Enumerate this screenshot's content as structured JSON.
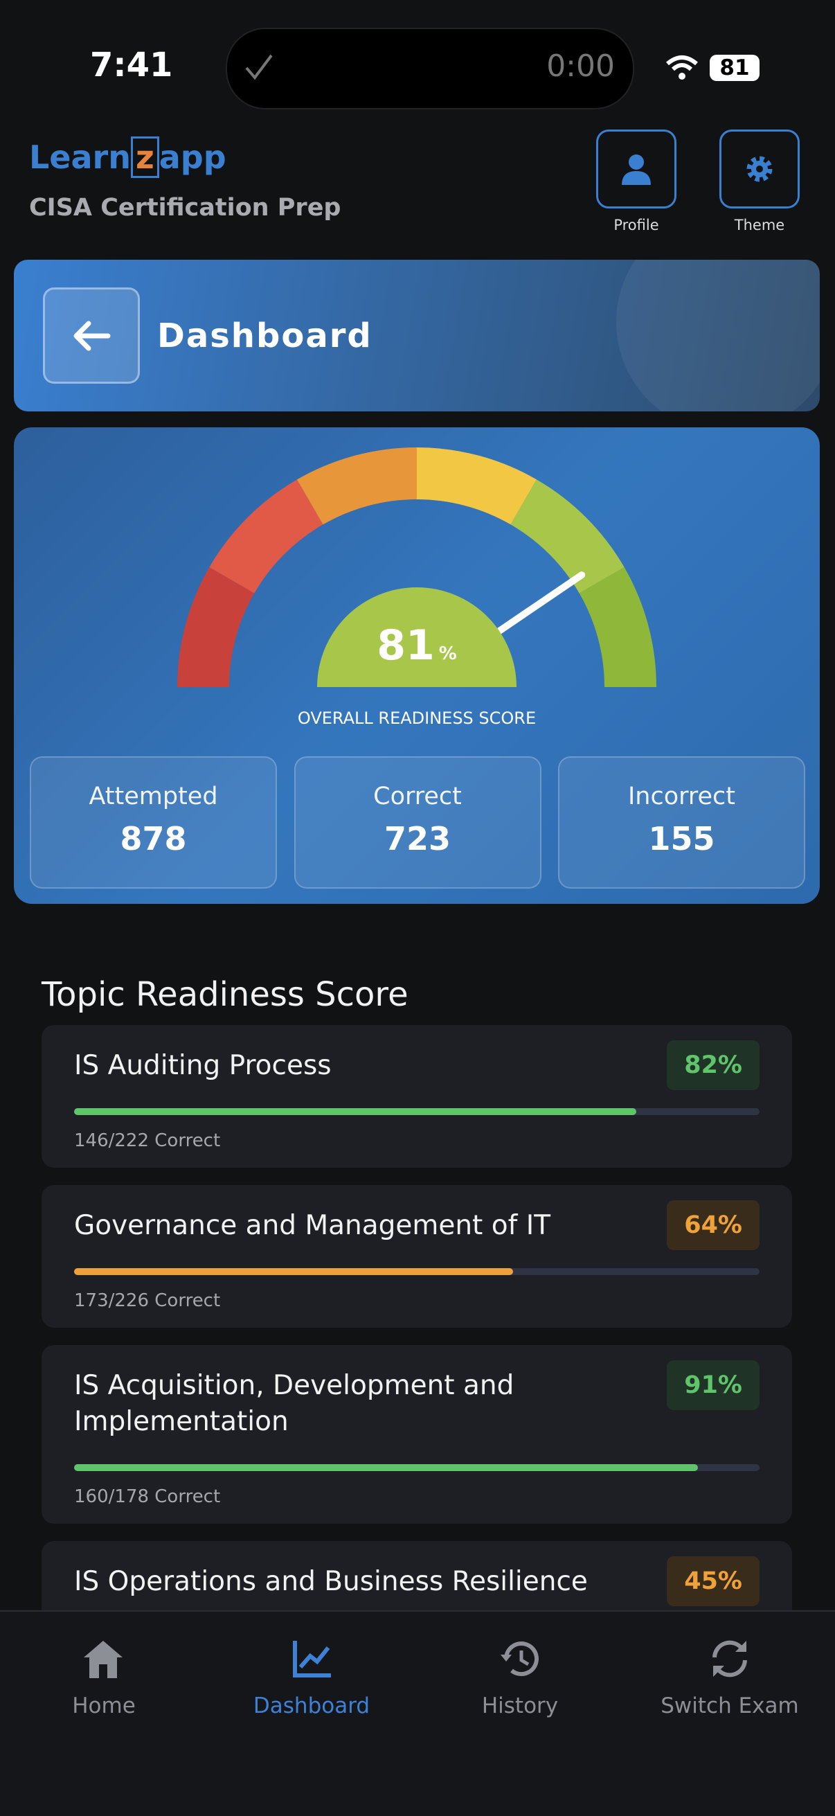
{
  "status_bar": {
    "time": "7:41",
    "timer": "0:00",
    "battery": "81"
  },
  "header": {
    "logo_parts": [
      "Learn",
      "z",
      "app"
    ],
    "subtitle": "CISA Certification Prep",
    "buttons": [
      "Profile",
      "Theme"
    ]
  },
  "banner": {
    "title": "Dashboard"
  },
  "gauge": {
    "value": 81,
    "unit": "%",
    "label": "OVERALL READINESS SCORE"
  },
  "stats": [
    {
      "label": "Attempted",
      "value": 878
    },
    {
      "label": "Correct",
      "value": 723
    },
    {
      "label": "Incorrect",
      "value": 155
    }
  ],
  "topics": {
    "title": "Topic Readiness Score",
    "items": [
      {
        "name": "IS Auditing Process",
        "percent": 82,
        "percent_label": "82%",
        "caption": "146/222 Correct"
      },
      {
        "name": "Governance and Management of IT",
        "percent": 64,
        "percent_label": "64%",
        "caption": "173/226 Correct"
      },
      {
        "name": "IS Acquisition, Development and Implementation",
        "percent": 91,
        "percent_label": "91%",
        "caption": "160/178 Correct"
      },
      {
        "name": "IS Operations and Business Resilience",
        "percent": 45,
        "percent_label": "45%"
      }
    ]
  },
  "nav": [
    "Home",
    "Dashboard",
    "History",
    "Switch Exam"
  ]
}
